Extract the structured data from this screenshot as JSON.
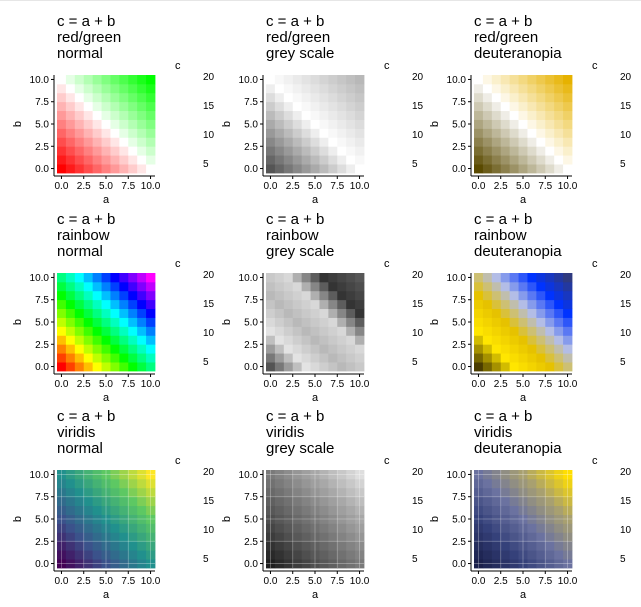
{
  "figure": {
    "palettes": {
      "redgreen_normal": {
        "low": "#ff0000",
        "mid": "#ffffff",
        "high": "#00ff00"
      },
      "redgreen_grey": {
        "low": "#555555",
        "mid": "#ffffff",
        "high": "#b8b8b8"
      },
      "redgreen_deuteranopia": {
        "low": "#5a4a00",
        "mid": "#ffffff",
        "high": "#e6b200"
      },
      "rainbow_normal": [
        "#ff0000",
        "#ffff00",
        "#00ff00",
        "#00ffff",
        "#0000ff",
        "#ff00ff"
      ],
      "rainbow_grey": [
        "#545454",
        "#e3e3e3",
        "#b9b9b9",
        "#d8d8d8",
        "#343434",
        "#575757"
      ],
      "rainbow_deuteranopia": [
        "#4a3c00",
        "#ffe600",
        "#e6c200",
        "#b3bde6",
        "#0033ff",
        "#2f3a80"
      ],
      "viridis_normal": [
        "#440154",
        "#3b528b",
        "#21908d",
        "#5dc863",
        "#fde725"
      ],
      "viridis_grey": [
        "#1f1f1f",
        "#4f4f4f",
        "#7a7a7a",
        "#a8a8a8",
        "#dedede"
      ],
      "viridis_deuteranopia": [
        "#1a1f4a",
        "#35417a",
        "#6b72a0",
        "#a8a070",
        "#ffde00"
      ]
    }
  },
  "chart_data": [
    {
      "type": "heatmap",
      "title": [
        "c = a + b",
        "red/green",
        "normal"
      ],
      "palette": "redgreen_normal",
      "x": [
        0,
        1,
        2,
        3,
        4,
        5,
        6,
        7,
        8,
        9,
        10
      ],
      "y": [
        0,
        1,
        2,
        3,
        4,
        5,
        6,
        7,
        8,
        9,
        10
      ],
      "value": "c = a + b",
      "xlabel": "a",
      "ylabel": "b",
      "xlim": [
        -0.5,
        10.5
      ],
      "ylim": [
        -0.5,
        10.5
      ],
      "xticks": [
        "0.0",
        "2.5",
        "5.0",
        "7.5",
        "10.0"
      ],
      "yticks": [
        "0.0",
        "2.5",
        "5.0",
        "7.5",
        "10.0"
      ],
      "legend_title": "c",
      "legend_ticks": [
        "20",
        "15",
        "10",
        "5"
      ],
      "grid": false
    },
    {
      "type": "heatmap",
      "title": [
        "c = a + b",
        "red/green",
        "grey scale"
      ],
      "palette": "redgreen_grey",
      "x": [
        0,
        1,
        2,
        3,
        4,
        5,
        6,
        7,
        8,
        9,
        10
      ],
      "y": [
        0,
        1,
        2,
        3,
        4,
        5,
        6,
        7,
        8,
        9,
        10
      ],
      "value": "c = a + b",
      "xlabel": "a",
      "ylabel": "b",
      "xlim": [
        -0.5,
        10.5
      ],
      "ylim": [
        -0.5,
        10.5
      ],
      "xticks": [
        "0.0",
        "2.5",
        "5.0",
        "7.5",
        "10.0"
      ],
      "yticks": [
        "0.0",
        "2.5",
        "5.0",
        "7.5",
        "10.0"
      ],
      "legend_title": "c",
      "legend_ticks": [
        "20",
        "15",
        "10",
        "5"
      ],
      "grid": false
    },
    {
      "type": "heatmap",
      "title": [
        "c = a + b",
        "red/green",
        "deuteranopia"
      ],
      "palette": "redgreen_deuteranopia",
      "x": [
        0,
        1,
        2,
        3,
        4,
        5,
        6,
        7,
        8,
        9,
        10
      ],
      "y": [
        0,
        1,
        2,
        3,
        4,
        5,
        6,
        7,
        8,
        9,
        10
      ],
      "value": "c = a + b",
      "xlabel": "a",
      "ylabel": "b",
      "xlim": [
        -0.5,
        10.5
      ],
      "ylim": [
        -0.5,
        10.5
      ],
      "xticks": [
        "0.0",
        "2.5",
        "5.0",
        "7.5",
        "10.0"
      ],
      "yticks": [
        "0.0",
        "2.5",
        "5.0",
        "7.5",
        "10.0"
      ],
      "legend_title": "c",
      "legend_ticks": [
        "20",
        "15",
        "10",
        "5"
      ],
      "grid": false
    },
    {
      "type": "heatmap",
      "title": [
        "c = a + b",
        "rainbow",
        "normal"
      ],
      "palette": "rainbow_normal",
      "x": [
        0,
        1,
        2,
        3,
        4,
        5,
        6,
        7,
        8,
        9,
        10
      ],
      "y": [
        0,
        1,
        2,
        3,
        4,
        5,
        6,
        7,
        8,
        9,
        10
      ],
      "value": "c = a + b",
      "xlabel": "a",
      "ylabel": "b",
      "xlim": [
        -0.5,
        10.5
      ],
      "ylim": [
        -0.5,
        10.5
      ],
      "xticks": [
        "0.0",
        "2.5",
        "5.0",
        "7.5",
        "10.0"
      ],
      "yticks": [
        "0.0",
        "2.5",
        "5.0",
        "7.5",
        "10.0"
      ],
      "legend_title": "c",
      "legend_ticks": [
        "20",
        "15",
        "10",
        "5"
      ],
      "grid": false
    },
    {
      "type": "heatmap",
      "title": [
        "c = a + b",
        "rainbow",
        "grey scale"
      ],
      "palette": "rainbow_grey",
      "x": [
        0,
        1,
        2,
        3,
        4,
        5,
        6,
        7,
        8,
        9,
        10
      ],
      "y": [
        0,
        1,
        2,
        3,
        4,
        5,
        6,
        7,
        8,
        9,
        10
      ],
      "value": "c = a + b",
      "xlabel": "a",
      "ylabel": "b",
      "xlim": [
        -0.5,
        10.5
      ],
      "ylim": [
        -0.5,
        10.5
      ],
      "xticks": [
        "0.0",
        "2.5",
        "5.0",
        "7.5",
        "10.0"
      ],
      "yticks": [
        "0.0",
        "2.5",
        "5.0",
        "7.5",
        "10.0"
      ],
      "legend_title": "c",
      "legend_ticks": [
        "20",
        "15",
        "10",
        "5"
      ],
      "grid": false
    },
    {
      "type": "heatmap",
      "title": [
        "c = a + b",
        "rainbow",
        "deuteranopia"
      ],
      "palette": "rainbow_deuteranopia",
      "x": [
        0,
        1,
        2,
        3,
        4,
        5,
        6,
        7,
        8,
        9,
        10
      ],
      "y": [
        0,
        1,
        2,
        3,
        4,
        5,
        6,
        7,
        8,
        9,
        10
      ],
      "value": "c = a + b",
      "xlabel": "a",
      "ylabel": "b",
      "xlim": [
        -0.5,
        10.5
      ],
      "ylim": [
        -0.5,
        10.5
      ],
      "xticks": [
        "0.0",
        "2.5",
        "5.0",
        "7.5",
        "10.0"
      ],
      "yticks": [
        "0.0",
        "2.5",
        "5.0",
        "7.5",
        "10.0"
      ],
      "legend_title": "c",
      "legend_ticks": [
        "20",
        "15",
        "10",
        "5"
      ],
      "grid": false
    },
    {
      "type": "heatmap",
      "title": [
        "c = a + b",
        "viridis",
        "normal"
      ],
      "palette": "viridis_normal",
      "x": [
        0,
        1,
        2,
        3,
        4,
        5,
        6,
        7,
        8,
        9,
        10
      ],
      "y": [
        0,
        1,
        2,
        3,
        4,
        5,
        6,
        7,
        8,
        9,
        10
      ],
      "value": "c = a + b",
      "xlabel": "a",
      "ylabel": "b",
      "xlim": [
        -0.5,
        10.5
      ],
      "ylim": [
        -0.5,
        10.5
      ],
      "xticks": [
        "0.0",
        "2.5",
        "5.0",
        "7.5",
        "10.0"
      ],
      "yticks": [
        "0.0",
        "2.5",
        "5.0",
        "7.5",
        "10.0"
      ],
      "legend_title": "c",
      "legend_ticks": [
        "20",
        "15",
        "10",
        "5"
      ],
      "grid": true
    },
    {
      "type": "heatmap",
      "title": [
        "c = a + b",
        "viridis",
        "grey scale"
      ],
      "palette": "viridis_grey",
      "x": [
        0,
        1,
        2,
        3,
        4,
        5,
        6,
        7,
        8,
        9,
        10
      ],
      "y": [
        0,
        1,
        2,
        3,
        4,
        5,
        6,
        7,
        8,
        9,
        10
      ],
      "value": "c = a + b",
      "xlabel": "a",
      "ylabel": "b",
      "xlim": [
        -0.5,
        10.5
      ],
      "ylim": [
        -0.5,
        10.5
      ],
      "xticks": [
        "0.0",
        "2.5",
        "5.0",
        "7.5",
        "10.0"
      ],
      "yticks": [
        "0.0",
        "2.5",
        "5.0",
        "7.5",
        "10.0"
      ],
      "legend_title": "c",
      "legend_ticks": [
        "20",
        "15",
        "10",
        "5"
      ],
      "grid": true
    },
    {
      "type": "heatmap",
      "title": [
        "c = a + b",
        "viridis",
        "deuteranopia"
      ],
      "palette": "viridis_deuteranopia",
      "x": [
        0,
        1,
        2,
        3,
        4,
        5,
        6,
        7,
        8,
        9,
        10
      ],
      "y": [
        0,
        1,
        2,
        3,
        4,
        5,
        6,
        7,
        8,
        9,
        10
      ],
      "value": "c = a + b",
      "xlabel": "a",
      "ylabel": "b",
      "xlim": [
        -0.5,
        10.5
      ],
      "ylim": [
        -0.5,
        10.5
      ],
      "xticks": [
        "0.0",
        "2.5",
        "5.0",
        "7.5",
        "10.0"
      ],
      "yticks": [
        "0.0",
        "2.5",
        "5.0",
        "7.5",
        "10.0"
      ],
      "legend_title": "c",
      "legend_ticks": [
        "20",
        "15",
        "10",
        "5"
      ],
      "grid": true
    }
  ]
}
